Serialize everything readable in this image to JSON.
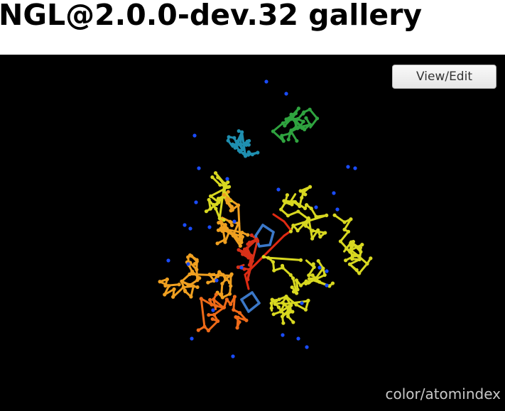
{
  "page": {
    "title": "NGL@2.0.0-dev.32 gallery"
  },
  "viewer": {
    "view_edit_label": "View/Edit",
    "caption": "color/atomindex",
    "background": "#000000",
    "molecule_icon": "protein-ball-and-stick"
  },
  "colors": {
    "color_scale": [
      "#1f8fb0",
      "#2fa33f",
      "#d8d820",
      "#f2d21a",
      "#f0a020",
      "#ef6a18",
      "#d83018"
    ],
    "water": "#1a4cff",
    "ligand": "#3b78c8"
  }
}
